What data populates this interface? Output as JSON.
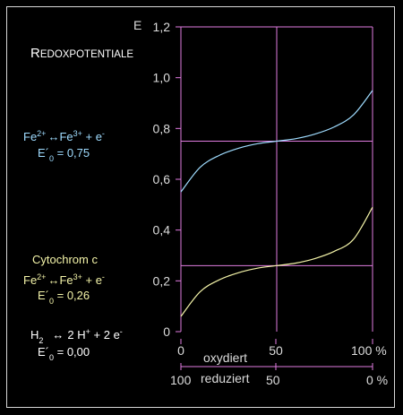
{
  "chart_data": {
    "type": "line",
    "title": "Redoxpotentiale",
    "y_axis": {
      "label": "E",
      "ticks": [
        "0",
        "0,2",
        "0,4",
        "0,6",
        "0,8",
        "1,0",
        "1,2"
      ],
      "ylim": [
        0,
        1.2
      ]
    },
    "x_axis": {
      "top": {
        "ticks": [
          "0",
          "50",
          "100 %"
        ],
        "label": "oxydiert"
      },
      "bottom": {
        "ticks": [
          "100",
          "50",
          "0 %"
        ],
        "label": "reduziert"
      },
      "xlim": [
        0,
        100
      ]
    },
    "series": [
      {
        "color": "#9fdcff",
        "E0": 0.75,
        "x": [
          0,
          10,
          20,
          30,
          40,
          50,
          60,
          70,
          80,
          90,
          100
        ],
        "y": [
          0.55,
          0.647,
          0.694,
          0.722,
          0.74,
          0.75,
          0.76,
          0.778,
          0.806,
          0.853,
          0.95
        ]
      },
      {
        "color": "#f3f3a8",
        "E0": 0.26,
        "x": [
          0,
          10,
          20,
          30,
          40,
          50,
          60,
          70,
          80,
          90,
          100
        ],
        "y": [
          0.06,
          0.157,
          0.204,
          0.232,
          0.25,
          0.26,
          0.27,
          0.288,
          0.316,
          0.363,
          0.49
        ]
      }
    ],
    "reference_lines": [
      0.75,
      0.26
    ],
    "midline_x": 50
  },
  "annotations": {
    "fe": {
      "l1a": "Fe",
      "l1b": "2+",
      "l1c": "↔",
      "l1d": "Fe",
      "l1e": "3+",
      "l1f": " + e",
      "l1g": "-",
      "l2a": "E´",
      "l2b": "0",
      "l2c": " = 0,75"
    },
    "cyt": {
      "name": "Cytochrom c",
      "l1a": "Fe",
      "l1b": "2+",
      "l1c": "↔",
      "l1d": "Fe",
      "l1e": "3+",
      "l1f": " + e",
      "l1g": "-",
      "l2a": "E´",
      "l2b": "0",
      "l2c": " = 0,26"
    },
    "h2": {
      "l1a": "H",
      "l1b": "2",
      "l1c": "↔",
      "l1d": "2 H",
      "l1e": "+",
      "l1f": " + 2 e",
      "l1g": "-",
      "l2a": "E´",
      "l2b": "0",
      "l2c": " = 0,00"
    }
  },
  "colors": {
    "background": "#000000",
    "frame": "#d8d8d8",
    "axis": "#e07be0",
    "fe_curve": "#9fdcff",
    "cyt_curve": "#f3f3a8",
    "text": "#ffffff"
  }
}
